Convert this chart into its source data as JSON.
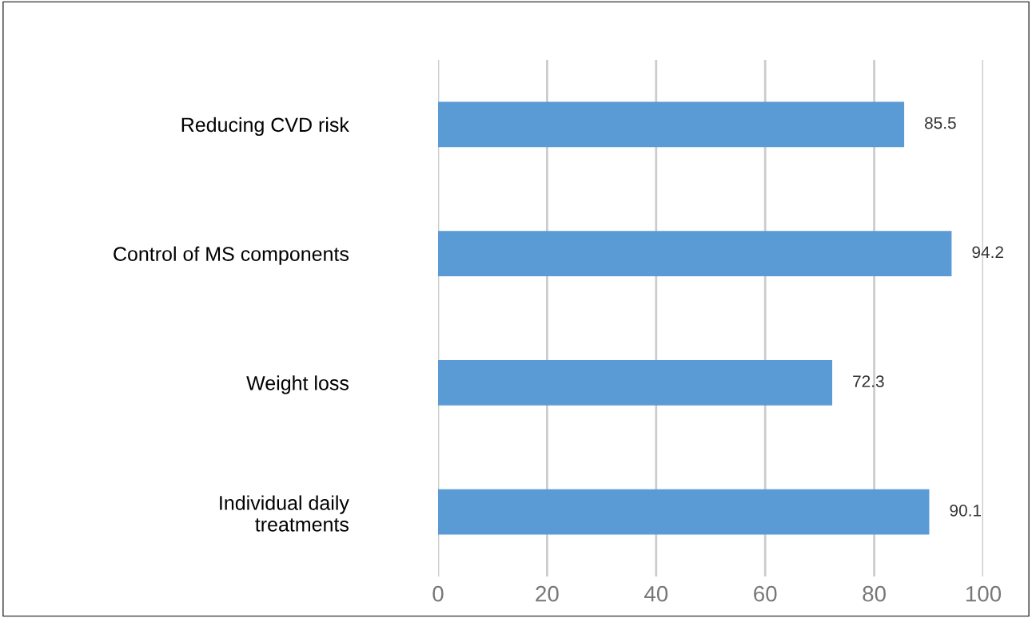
{
  "chart_data": {
    "type": "bar",
    "orientation": "horizontal",
    "categories": [
      "Reducing CVD risk",
      "Control of MS components",
      "Weight loss",
      "Individual daily\ntreatments"
    ],
    "values": [
      85.5,
      94.2,
      72.3,
      90.1
    ],
    "color": "#5b9bd5",
    "xlim": [
      0,
      100
    ],
    "xticks": [
      0,
      20,
      40,
      60,
      80,
      100
    ],
    "grid": "x",
    "data_labels": true
  }
}
